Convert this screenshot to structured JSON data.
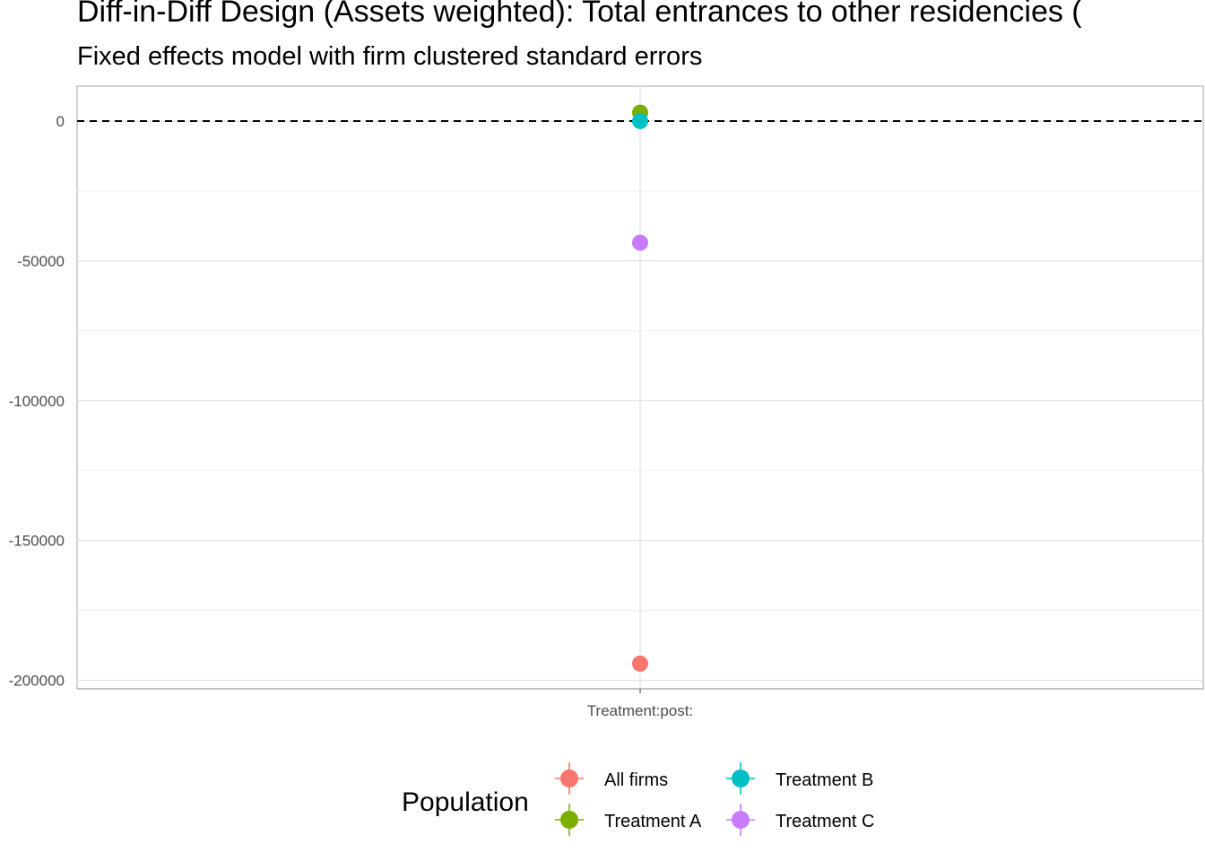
{
  "chart_data": {
    "type": "scatter",
    "title": "Diff-in-Diff Design (Assets weighted): Total entrances to other residencies (",
    "subtitle": "Fixed effects model with firm clustered standard errors",
    "xlabel": "",
    "ylabel": "",
    "categories": [
      "Treatment:post:"
    ],
    "ylim": [
      -203000,
      12500
    ],
    "yticks": [
      0,
      -50000,
      -100000,
      -150000,
      -200000
    ],
    "ytick_labels": [
      "0",
      "-50000",
      "-100000",
      "-150000",
      "-200000"
    ],
    "reference_line": {
      "y": 0,
      "style": "dashed",
      "color": "#000000"
    },
    "grid": true,
    "series": [
      {
        "name": "All firms",
        "color": "#F8766D",
        "values": [
          -194000
        ],
        "error_low": [
          -194000
        ],
        "error_high": [
          -194000
        ]
      },
      {
        "name": "Treatment A",
        "color": "#7CAE00",
        "values": [
          3000
        ],
        "error_low": [
          3000
        ],
        "error_high": [
          3000
        ]
      },
      {
        "name": "Treatment B",
        "color": "#00BFC4",
        "values": [
          0
        ],
        "error_low": [
          0
        ],
        "error_high": [
          0
        ]
      },
      {
        "name": "Treatment C",
        "color": "#C77CFF",
        "values": [
          -43500
        ],
        "error_low": [
          -43500
        ],
        "error_high": [
          -43500
        ]
      }
    ],
    "legend": {
      "title": "Population",
      "position": "bottom"
    }
  }
}
